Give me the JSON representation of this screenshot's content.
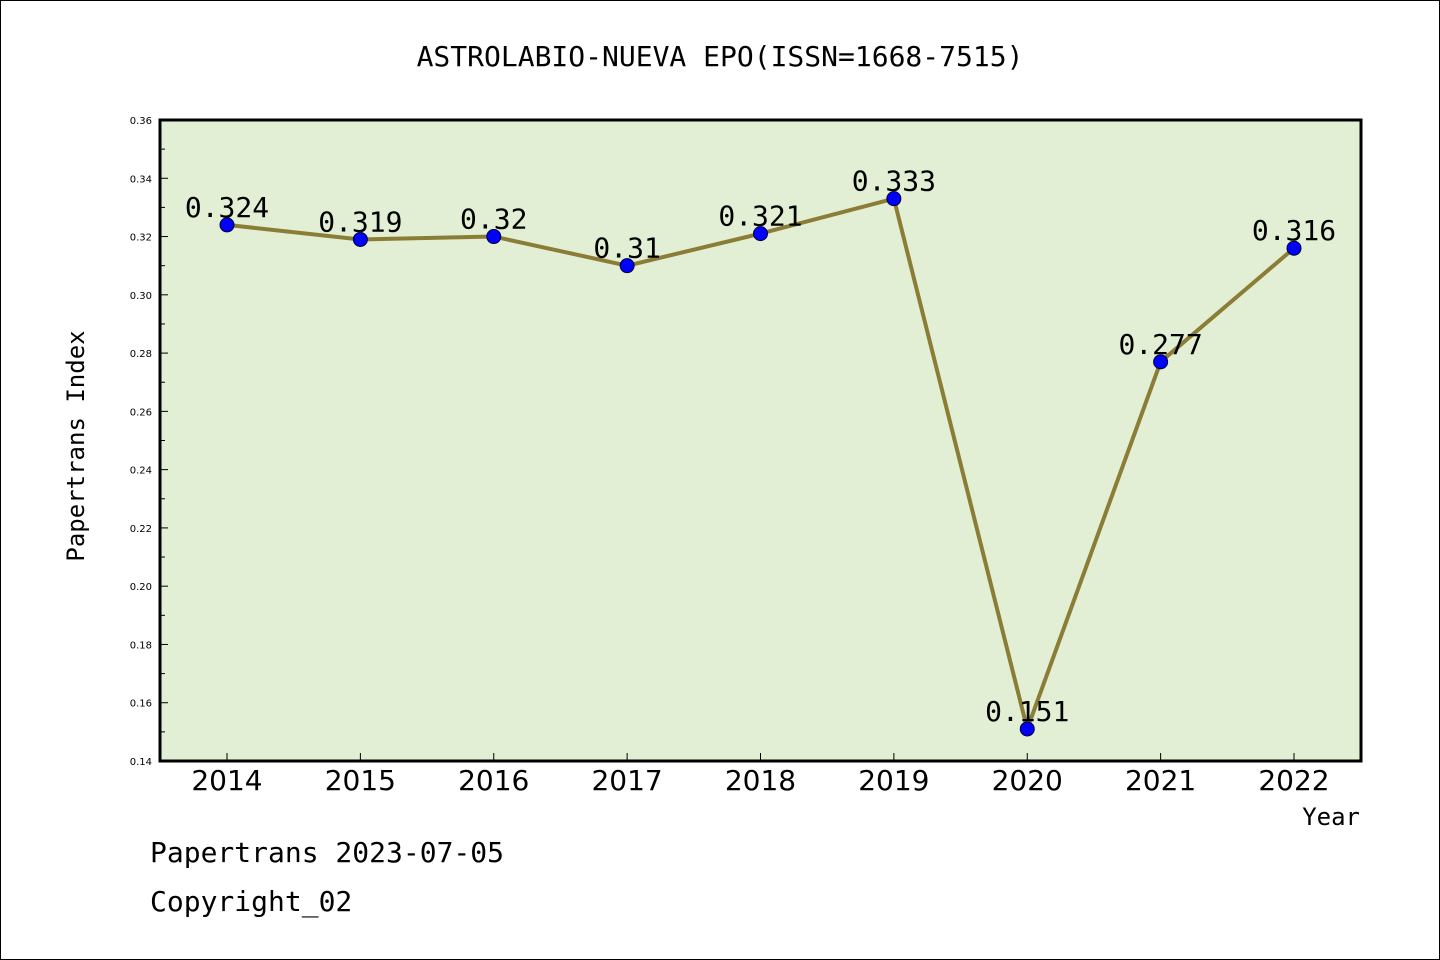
{
  "chart_data": {
    "type": "line",
    "title": "ASTROLABIO-NUEVA EPO(ISSN=1668-7515)",
    "xlabel": "Year",
    "ylabel": "Papertrans Index",
    "categories": [
      "2014",
      "2015",
      "2016",
      "2017",
      "2018",
      "2019",
      "2020",
      "2021",
      "2022"
    ],
    "series": [
      {
        "values": [
          0.324,
          0.319,
          0.32,
          0.31,
          0.321,
          0.333,
          0.151,
          0.277,
          0.316
        ],
        "data_labels": [
          "0.324",
          "0.319",
          "0.32",
          "0.31",
          "0.321",
          "0.333",
          "0.151",
          "0.277",
          "0.316"
        ]
      }
    ],
    "ylim": [
      0.14,
      0.36
    ],
    "yticks": [
      "0.14",
      "0.16",
      "0.18",
      "0.20",
      "0.22",
      "0.24",
      "0.26",
      "0.28",
      "0.30",
      "0.32",
      "0.34",
      "0.36"
    ],
    "grid": false,
    "legend": "none",
    "colors": {
      "plot_background": "#e2efd5",
      "line": "#8b7d35",
      "marker": "#0000ff"
    }
  },
  "footer": {
    "source": "Papertrans 2023-07-05",
    "copyright": "Copyright_02"
  }
}
